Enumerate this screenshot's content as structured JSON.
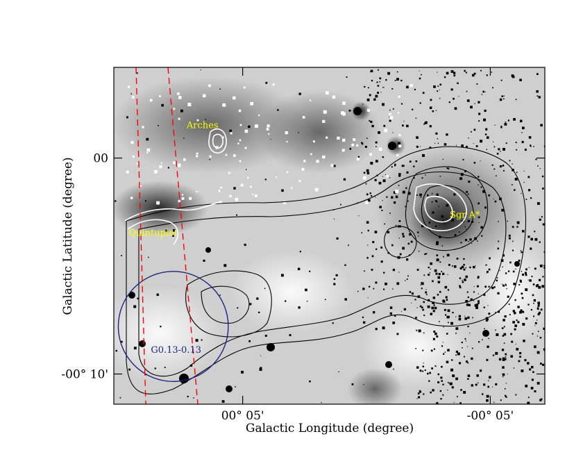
{
  "chart_data": {
    "type": "image",
    "xlabel": "Galactic Longitude (degree)",
    "ylabel": "Galactic Latitude (degree)",
    "x_ticks": [
      {
        "value": 0.0833,
        "label": "00° 05'"
      },
      {
        "value": -0.0833,
        "label": "-00° 05'"
      }
    ],
    "y_ticks": [
      {
        "value": 0.0,
        "label": "00"
      },
      {
        "value": -0.1667,
        "label": "-00° 10'"
      }
    ],
    "xlim": [
      0.17,
      -0.12
    ],
    "ylim": [
      -0.19,
      0.07
    ],
    "annotations": [
      {
        "text": "Arches",
        "l": 0.121,
        "b": 0.023,
        "color": "#ffff00"
      },
      {
        "text": "Quintuplet",
        "l": 0.16,
        "b": -0.06,
        "color": "#ffff00"
      },
      {
        "text": "Sgr A*",
        "l": -0.056,
        "b": -0.046,
        "color": "#ffff00"
      },
      {
        "text": "G0.13-0.13",
        "l": 0.13,
        "b": -0.13,
        "color": "#1a237e"
      }
    ],
    "circle": {
      "center_l": 0.13,
      "center_b": -0.13,
      "radius_deg": 0.037,
      "color": "#1a237e"
    },
    "dashed_lines_color": "#ff0000"
  }
}
